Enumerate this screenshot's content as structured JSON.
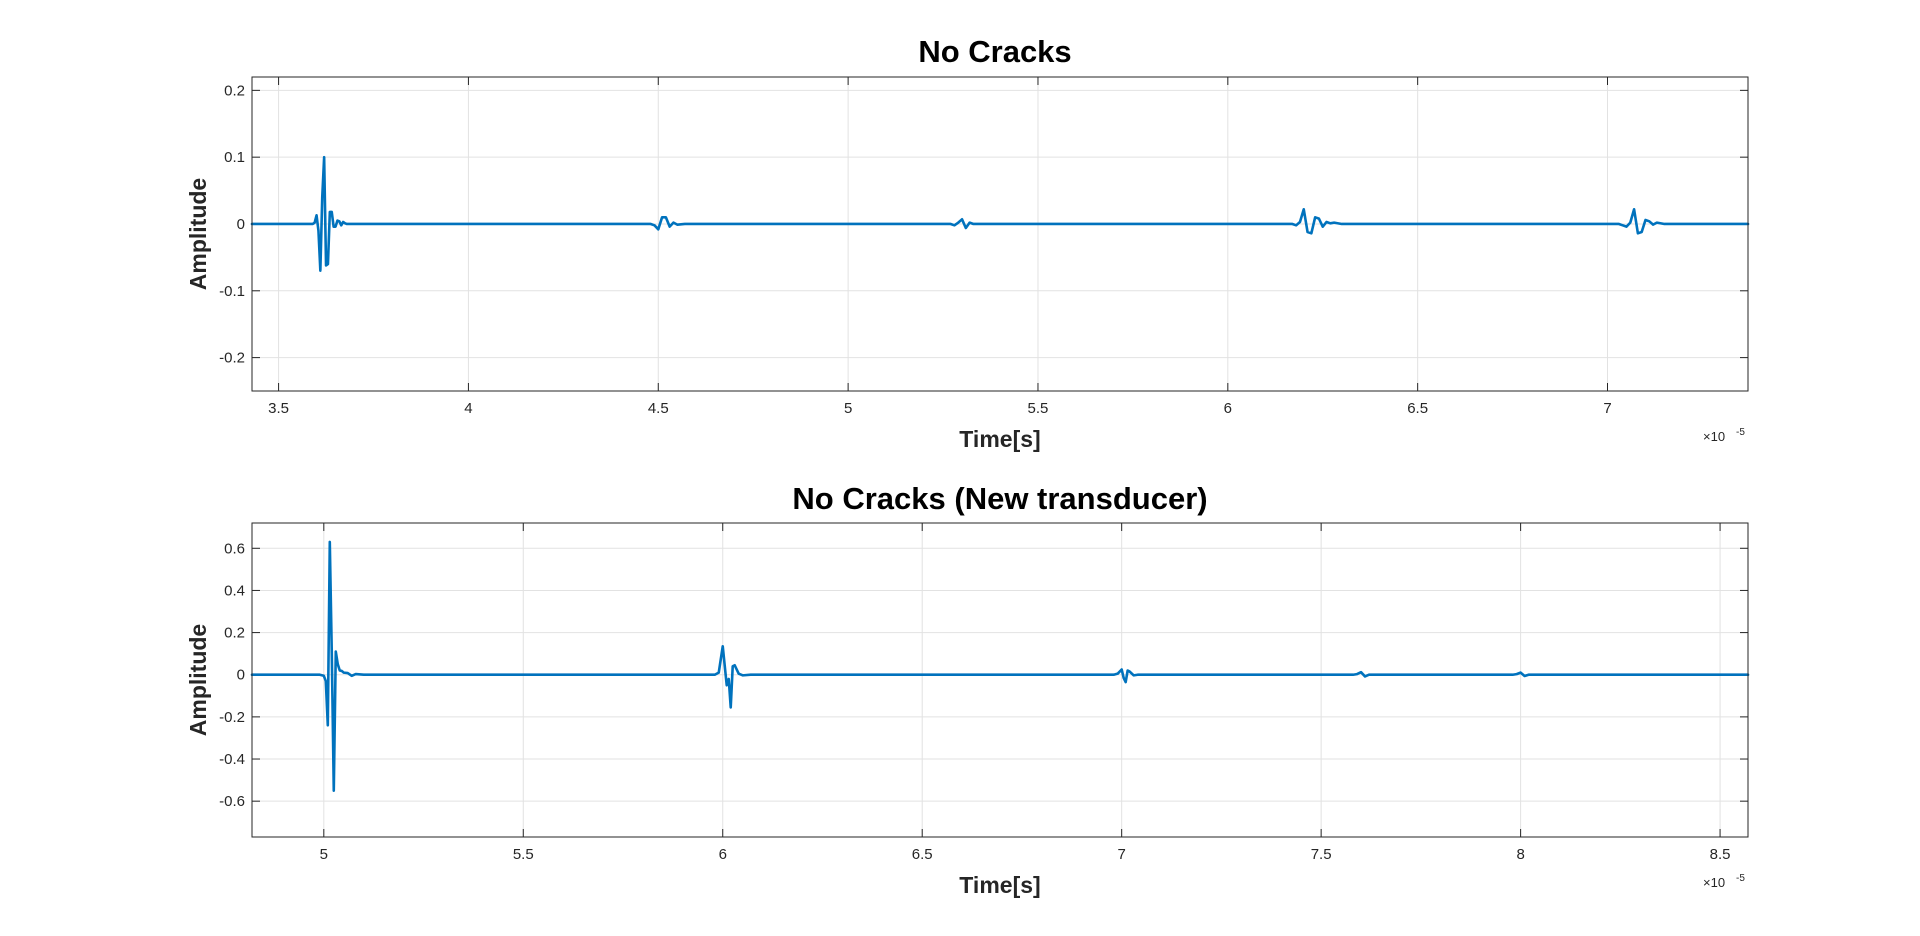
{
  "chart_data": [
    {
      "type": "line",
      "title": "No Cracks",
      "xlabel": "Time[s]",
      "ylabel": "Amplitude",
      "x_multiplier": "×10",
      "x_multiplier_exponent": "-5",
      "xlim": [
        3.43,
        7.37
      ],
      "ylim": [
        -0.25,
        0.22
      ],
      "xticks": [
        3.5,
        4,
        4.5,
        5,
        5.5,
        6,
        6.5,
        7
      ],
      "xtick_labels": [
        "3.5",
        "4",
        "4.5",
        "5",
        "5.5",
        "6",
        "6.5",
        "7"
      ],
      "yticks": [
        -0.2,
        -0.1,
        0,
        0.1,
        0.2
      ],
      "ytick_labels": [
        "-0.2",
        "-0.1",
        "0",
        "0.1",
        "0.2"
      ],
      "grid": true,
      "line_color": "#0072BD",
      "series": [
        {
          "x": [
            3.43,
            3.59,
            3.595,
            3.6,
            3.605,
            3.61,
            3.615,
            3.62,
            3.625,
            3.63,
            3.635,
            3.64,
            3.645,
            3.65,
            3.655,
            3.66,
            3.665,
            3.67,
            3.675,
            3.68,
            3.7,
            4.48,
            4.49,
            4.5,
            4.51,
            4.52,
            4.53,
            4.54,
            4.55,
            4.57,
            5.27,
            5.28,
            5.29,
            5.3,
            5.31,
            5.32,
            5.33,
            5.35,
            6.17,
            6.18,
            6.19,
            6.2,
            6.21,
            6.22,
            6.23,
            6.24,
            6.25,
            6.26,
            6.27,
            6.28,
            6.3,
            7.03,
            7.04,
            7.05,
            7.06,
            7.07,
            7.08,
            7.09,
            7.1,
            7.11,
            7.12,
            7.13,
            7.15,
            7.37
          ],
          "y": [
            0,
            0,
            0.002,
            0.013,
            -0.01,
            -0.07,
            0.04,
            0.1,
            -0.062,
            -0.06,
            0.018,
            0.018,
            -0.004,
            -0.004,
            0.005,
            0.004,
            -0.002,
            0.003,
            0.001,
            0,
            0,
            0,
            -0.002,
            -0.008,
            0.01,
            0.01,
            -0.004,
            0.002,
            -0.001,
            0,
            0,
            -0.002,
            0.002,
            0.007,
            -0.006,
            0.002,
            0,
            0,
            0,
            -0.002,
            0.003,
            0.022,
            -0.012,
            -0.014,
            0.01,
            0.008,
            -0.004,
            0.003,
            0.001,
            0.002,
            0,
            0,
            -0.002,
            -0.004,
            0.002,
            0.022,
            -0.014,
            -0.012,
            0.006,
            0.004,
            -0.001,
            0.002,
            0,
            0
          ]
        }
      ]
    },
    {
      "type": "line",
      "title": "No Cracks (New transducer)",
      "xlabel": "Time[s]",
      "ylabel": "Amplitude",
      "x_multiplier": "×10",
      "x_multiplier_exponent": "-5",
      "xlim": [
        4.82,
        8.57
      ],
      "ylim": [
        -0.77,
        0.72
      ],
      "xticks": [
        5,
        5.5,
        6,
        6.5,
        7,
        7.5,
        8,
        8.5
      ],
      "xtick_labels": [
        "5",
        "5.5",
        "6",
        "6.5",
        "7",
        "7.5",
        "8",
        "8.5"
      ],
      "yticks": [
        -0.6,
        -0.4,
        -0.2,
        0,
        0.2,
        0.4,
        0.6
      ],
      "ytick_labels": [
        "-0.6",
        "-0.4",
        "-0.2",
        "0",
        "0.2",
        "0.4",
        "0.6"
      ],
      "grid": true,
      "line_color": "#0072BD",
      "series": [
        {
          "x": [
            4.82,
            4.99,
            5.0,
            5.005,
            5.01,
            5.015,
            5.02,
            5.025,
            5.03,
            5.035,
            5.04,
            5.045,
            5.05,
            5.06,
            5.07,
            5.08,
            5.1,
            5.98,
            5.99,
            6.0,
            6.01,
            6.015,
            6.02,
            6.025,
            6.03,
            6.04,
            6.05,
            6.07,
            6.98,
            6.99,
            7.0,
            7.005,
            7.01,
            7.015,
            7.02,
            7.03,
            7.04,
            7.58,
            7.59,
            7.6,
            7.61,
            7.62,
            7.98,
            7.99,
            8.0,
            8.01,
            8.02,
            8.57
          ],
          "y": [
            0,
            0,
            -0.005,
            -0.03,
            -0.24,
            0.63,
            0.1,
            -0.55,
            0.11,
            0.05,
            0.02,
            0.018,
            0.01,
            0.008,
            -0.005,
            0.003,
            0,
            0,
            0.01,
            0.135,
            -0.05,
            -0.02,
            -0.155,
            0.04,
            0.045,
            0.005,
            -0.003,
            0,
            0,
            0.005,
            0.025,
            -0.015,
            -0.035,
            0.02,
            0.015,
            -0.003,
            0,
            0,
            0.003,
            0.012,
            -0.008,
            0,
            0,
            0.003,
            0.01,
            -0.006,
            0,
            0
          ]
        }
      ]
    }
  ]
}
